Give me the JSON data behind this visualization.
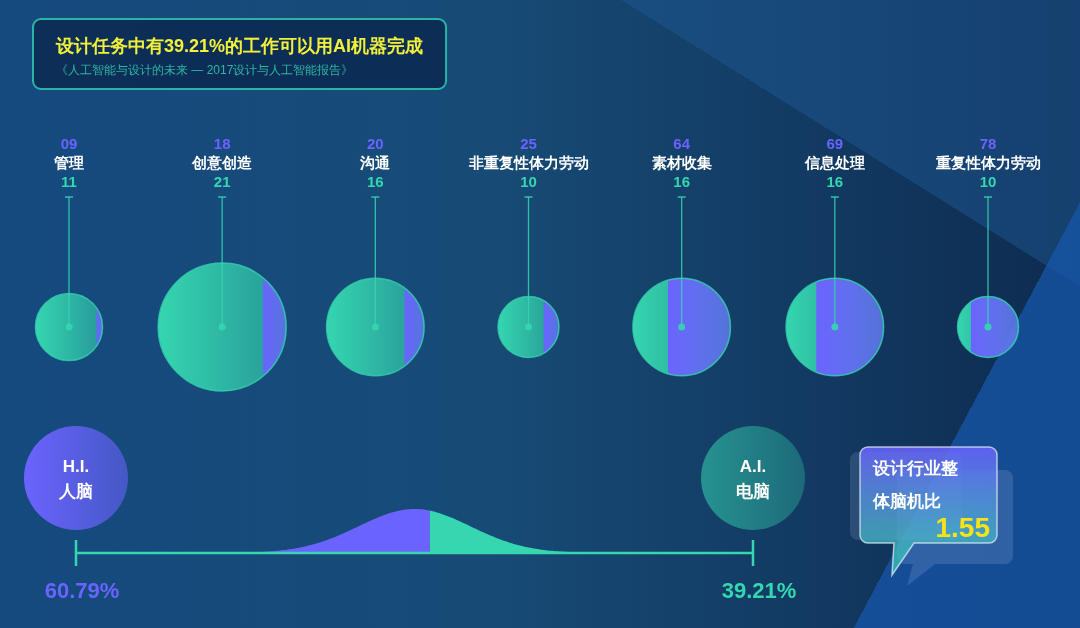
{
  "chart_data": [
    {
      "type": "other",
      "title": "设计任务中有39.21%的工作可以用AI机器完成",
      "subtitle": "《人工智能与设计的未来 — 2017设计与人工智能报告》",
      "categories": [
        "管理",
        "创意创造",
        "沟通",
        "非重复性体力劳动",
        "素材收集",
        "信息处理",
        "重复性体力劳动"
      ],
      "series": [
        {
          "color": "#6b63ff",
          "values": [
            9,
            18,
            20,
            25,
            64,
            69,
            78
          ],
          "value_labels": [
            "09",
            "18",
            "20",
            "25",
            "64",
            "69",
            "78"
          ]
        },
        {
          "color": "#35d6b0",
          "values": [
            11,
            21,
            16,
            10,
            16,
            16,
            10
          ],
          "value_labels": [
            "11",
            "21",
            "16",
            "10",
            "16",
            "16",
            "10"
          ]
        }
      ]
    },
    {
      "type": "other",
      "categories": [
        "H.I.\n人脑",
        "A.I.\n电脑"
      ],
      "values": [
        60.79,
        39.21
      ],
      "value_labels": [
        "60.79%",
        "39.21%"
      ],
      "colors": [
        "#6b63ff",
        "#35d6b0"
      ],
      "annotations": [
        "设计行业整体脑机比",
        "1.55"
      ]
    }
  ]
}
